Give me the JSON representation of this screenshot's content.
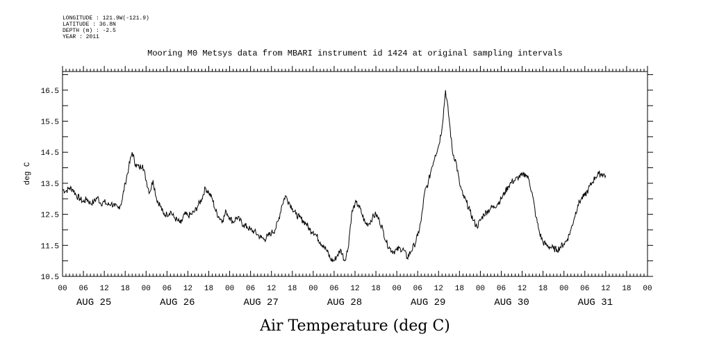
{
  "meta": {
    "longitude": "LONGITUDE : 121.9W(-121.9)",
    "latitude": "LATITUDE : 36.8N",
    "depth": "DEPTH (m) : -2.5",
    "year": "YEAR : 2011"
  },
  "chart_data": {
    "type": "line",
    "title": "Mooring M0 Metsys data from MBARI instrument id 1424 at original sampling intervals",
    "caption": "Air Temperature (deg C)",
    "ylabel": "deg C",
    "xlabel": "",
    "ylim": [
      10.5,
      17.1
    ],
    "xlim_hours": [
      0,
      168
    ],
    "y_ticks": [
      "10.5",
      "11.5",
      "12.5",
      "13.5",
      "14.5",
      "15.5",
      "16.5"
    ],
    "hour_tick_labels": [
      "00",
      "06",
      "12",
      "18",
      "00",
      "06",
      "12",
      "18",
      "00",
      "06",
      "12",
      "18",
      "00",
      "06",
      "12",
      "18",
      "00",
      "06",
      "12",
      "18",
      "00",
      "06",
      "12",
      "18",
      "00",
      "06",
      "12",
      "18",
      "00"
    ],
    "day_labels": [
      "AUG 25",
      "AUG 26",
      "AUG 27",
      "AUG 28",
      "AUG 29",
      "AUG 30",
      "AUG 31"
    ],
    "grid": false,
    "series": [
      {
        "points": [
          [
            0,
            13.3
          ],
          [
            1,
            13.25
          ],
          [
            2,
            13.35
          ],
          [
            3,
            13.3
          ],
          [
            4,
            13.1
          ],
          [
            5,
            13.0
          ],
          [
            6,
            12.9
          ],
          [
            7,
            13.0
          ],
          [
            8,
            12.85
          ],
          [
            9,
            12.9
          ],
          [
            10,
            13.05
          ],
          [
            11,
            12.85
          ],
          [
            12,
            12.9
          ],
          [
            13,
            12.8
          ],
          [
            14,
            12.85
          ],
          [
            15,
            12.75
          ],
          [
            16,
            12.7
          ],
          [
            17,
            12.9
          ],
          [
            18,
            13.5
          ],
          [
            19,
            14.0
          ],
          [
            20,
            14.5
          ],
          [
            21,
            14.1
          ],
          [
            22,
            14.0
          ],
          [
            23,
            14.1
          ],
          [
            24,
            13.6
          ],
          [
            25,
            13.2
          ],
          [
            26,
            13.6
          ],
          [
            27,
            13.0
          ],
          [
            28,
            12.8
          ],
          [
            29,
            12.5
          ],
          [
            30,
            12.5
          ],
          [
            31,
            12.6
          ],
          [
            32,
            12.4
          ],
          [
            33,
            12.3
          ],
          [
            34,
            12.2
          ],
          [
            35,
            12.5
          ],
          [
            36,
            12.45
          ],
          [
            37,
            12.5
          ],
          [
            38,
            12.6
          ],
          [
            39,
            12.8
          ],
          [
            40,
            13.0
          ],
          [
            41,
            13.35
          ],
          [
            42,
            13.2
          ],
          [
            43,
            13.0
          ],
          [
            44,
            12.6
          ],
          [
            45,
            12.4
          ],
          [
            46,
            12.3
          ],
          [
            47,
            12.6
          ],
          [
            48,
            12.4
          ],
          [
            49,
            12.25
          ],
          [
            50,
            12.4
          ],
          [
            51,
            12.3
          ],
          [
            52,
            12.15
          ],
          [
            53,
            12.1
          ],
          [
            54,
            12.0
          ],
          [
            55,
            11.95
          ],
          [
            56,
            11.85
          ],
          [
            57,
            11.75
          ],
          [
            58,
            11.7
          ],
          [
            59,
            11.8
          ],
          [
            60,
            11.9
          ],
          [
            61,
            12.0
          ],
          [
            62,
            12.3
          ],
          [
            63,
            12.8
          ],
          [
            64,
            13.1
          ],
          [
            65,
            12.9
          ],
          [
            66,
            12.7
          ],
          [
            67,
            12.5
          ],
          [
            68,
            12.4
          ],
          [
            69,
            12.3
          ],
          [
            70,
            12.2
          ],
          [
            71,
            12.0
          ],
          [
            72,
            11.95
          ],
          [
            73,
            11.8
          ],
          [
            74,
            11.6
          ],
          [
            75,
            11.5
          ],
          [
            76,
            11.3
          ],
          [
            77,
            11.05
          ],
          [
            78,
            11.0
          ],
          [
            79,
            11.2
          ],
          [
            80,
            11.35
          ],
          [
            81,
            11.0
          ],
          [
            82,
            11.4
          ],
          [
            83,
            12.5
          ],
          [
            84,
            12.85
          ],
          [
            85,
            12.8
          ],
          [
            86,
            12.5
          ],
          [
            87,
            12.2
          ],
          [
            88,
            12.2
          ],
          [
            89,
            12.4
          ],
          [
            90,
            12.5
          ],
          [
            91,
            12.3
          ],
          [
            92,
            12.0
          ],
          [
            93,
            11.6
          ],
          [
            94,
            11.4
          ],
          [
            95,
            11.3
          ],
          [
            96,
            11.35
          ],
          [
            97,
            11.4
          ],
          [
            98,
            11.35
          ],
          [
            99,
            11.1
          ],
          [
            100,
            11.3
          ],
          [
            101,
            11.5
          ],
          [
            102,
            11.8
          ],
          [
            103,
            12.3
          ],
          [
            104,
            13.2
          ],
          [
            105,
            13.5
          ],
          [
            106,
            14.0
          ],
          [
            107,
            14.4
          ],
          [
            108,
            14.7
          ],
          [
            109,
            15.3
          ],
          [
            110,
            16.5
          ],
          [
            111,
            15.6
          ],
          [
            112,
            14.5
          ],
          [
            113,
            14.2
          ],
          [
            114,
            13.5
          ],
          [
            115,
            13.1
          ],
          [
            116,
            12.9
          ],
          [
            117,
            12.6
          ],
          [
            118,
            12.3
          ],
          [
            119,
            12.1
          ],
          [
            120,
            12.3
          ],
          [
            121,
            12.5
          ],
          [
            122,
            12.6
          ],
          [
            123,
            12.7
          ],
          [
            124,
            12.75
          ],
          [
            125,
            12.85
          ],
          [
            126,
            13.0
          ],
          [
            127,
            13.2
          ],
          [
            128,
            13.4
          ],
          [
            129,
            13.55
          ],
          [
            130,
            13.6
          ],
          [
            131,
            13.7
          ],
          [
            132,
            13.75
          ],
          [
            133,
            13.8
          ],
          [
            134,
            13.6
          ],
          [
            135,
            13.1
          ],
          [
            136,
            12.4
          ],
          [
            137,
            11.9
          ],
          [
            138,
            11.6
          ],
          [
            139,
            11.5
          ],
          [
            140,
            11.45
          ],
          [
            141,
            11.4
          ],
          [
            142,
            11.35
          ],
          [
            143,
            11.45
          ],
          [
            144,
            11.55
          ],
          [
            145,
            11.7
          ],
          [
            146,
            12.0
          ],
          [
            147,
            12.4
          ],
          [
            148,
            12.8
          ],
          [
            149,
            13.0
          ],
          [
            150,
            13.1
          ],
          [
            151,
            13.3
          ],
          [
            152,
            13.5
          ],
          [
            153,
            13.7
          ],
          [
            154,
            13.8
          ],
          [
            155,
            13.8
          ],
          [
            156,
            13.75
          ]
        ]
      }
    ]
  }
}
